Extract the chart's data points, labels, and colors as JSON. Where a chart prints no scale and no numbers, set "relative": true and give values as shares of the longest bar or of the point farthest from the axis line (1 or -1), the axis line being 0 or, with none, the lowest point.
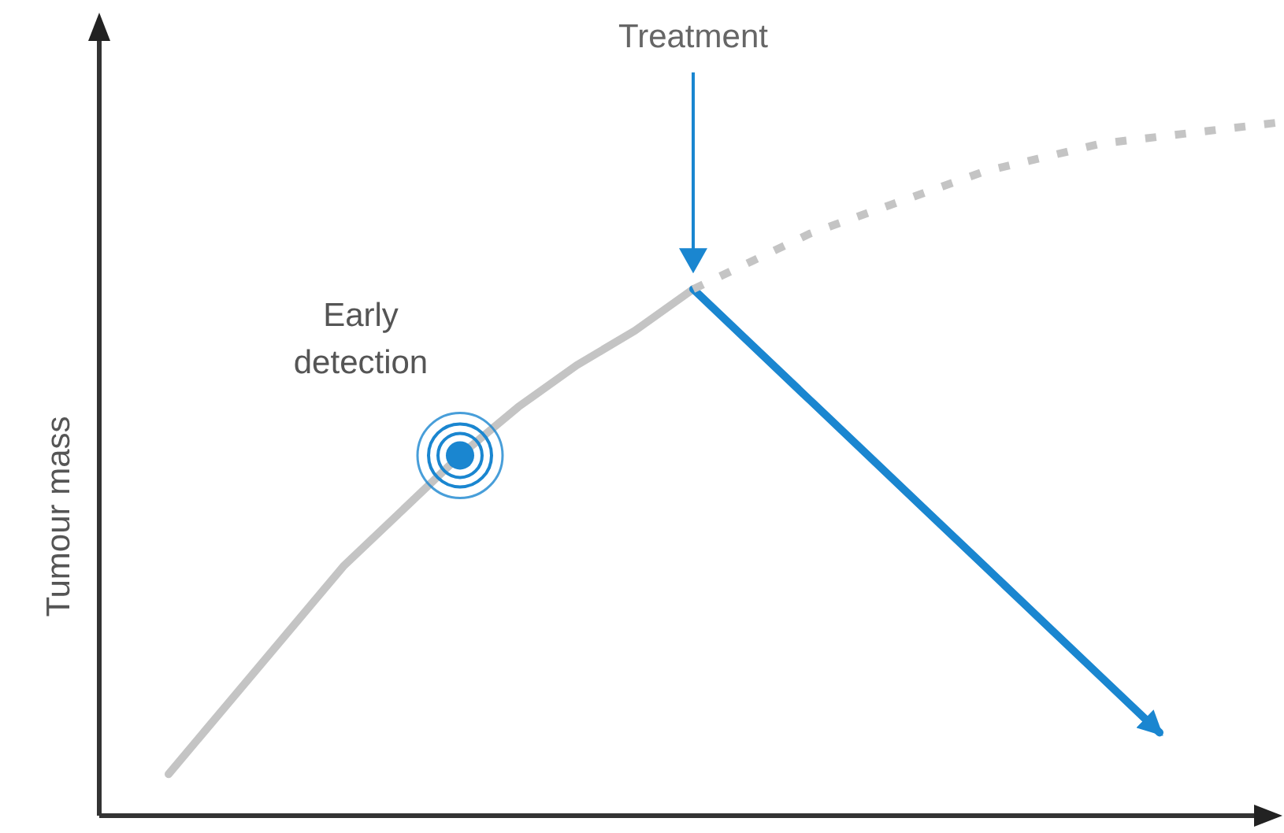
{
  "chart_data": {
    "type": "line",
    "relative": true,
    "ylabel": "Tumour mass",
    "annotations": [
      "Treatment",
      "Early detection"
    ],
    "categories": [
      null,
      null,
      null,
      null,
      null,
      null,
      null,
      null,
      null,
      null,
      null,
      null,
      null,
      null,
      null,
      null,
      null,
      null,
      null,
      null
    ],
    "series": [
      {
        "color": "#c4c4c4",
        "line_style": "solid",
        "values": [
          0.06,
          0.16,
          0.26,
          0.36,
          0.44,
          0.52,
          0.59,
          0.65,
          0.7,
          0.76,
          null,
          null,
          null,
          null,
          null,
          null,
          null,
          null,
          null,
          null
        ]
      },
      {
        "color": "#1a86d0",
        "line_style": "solid",
        "values": [
          null,
          null,
          null,
          null,
          null,
          null,
          null,
          null,
          null,
          0.76,
          0.68,
          0.6,
          0.52,
          0.44,
          0.36,
          0.28,
          0.2,
          0.12,
          null,
          null
        ]
      },
      {
        "color": "#c4c4c4",
        "line_style": "dotted",
        "values": [
          null,
          null,
          null,
          null,
          null,
          null,
          null,
          null,
          null,
          0.76,
          0.8,
          0.84,
          0.87,
          0.9,
          0.93,
          0.95,
          0.97,
          0.98,
          0.99,
          1.0
        ]
      }
    ],
    "marker": "none"
  }
}
